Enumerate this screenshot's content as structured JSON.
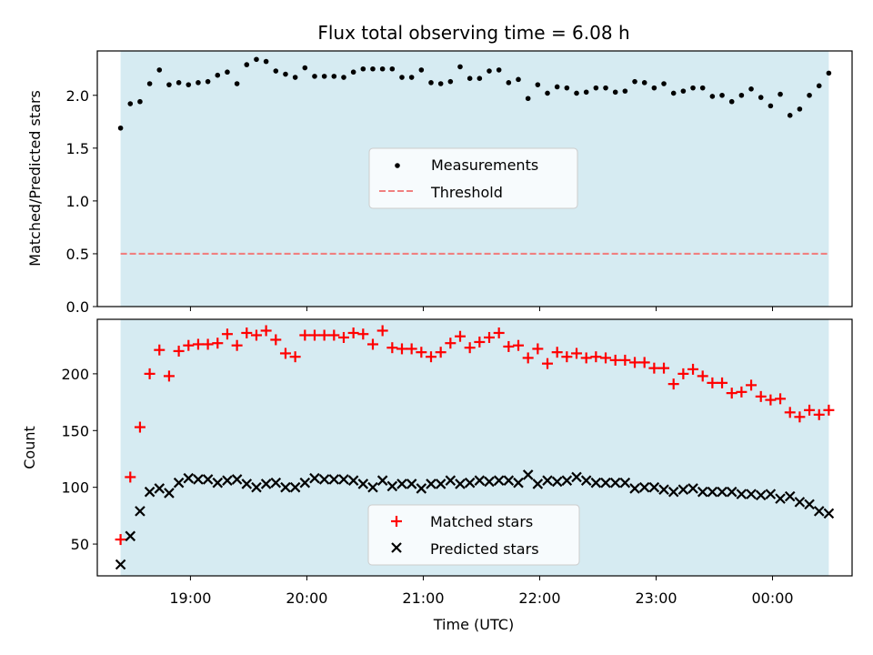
{
  "chart_data": [
    {
      "type": "scatter",
      "title": "Flux total observing time = 6.08 h",
      "xlabel": "",
      "ylabel": "Matched/Predicted stars",
      "ylim": [
        0.0,
        2.42
      ],
      "yticks": [
        "0.0",
        "0.5",
        "1.0",
        "1.5",
        "2.0"
      ],
      "shaded_span": {
        "x0": "18:24",
        "x1": "00:29",
        "color": "#add8e6"
      },
      "legend_location": "center",
      "series": [
        {
          "name": "Measurements",
          "marker": "dot",
          "color": "#000000",
          "points": [
            [
              "18:24",
              1.69
            ],
            [
              "18:29",
              1.92
            ],
            [
              "18:34",
              1.94
            ],
            [
              "18:39",
              2.11
            ],
            [
              "18:44",
              2.24
            ],
            [
              "18:49",
              2.1
            ],
            [
              "18:54",
              2.12
            ],
            [
              "18:59",
              2.1
            ],
            [
              "19:04",
              2.12
            ],
            [
              "19:09",
              2.13
            ],
            [
              "19:14",
              2.19
            ],
            [
              "19:19",
              2.22
            ],
            [
              "19:24",
              2.11
            ],
            [
              "19:29",
              2.29
            ],
            [
              "19:34",
              2.34
            ],
            [
              "19:39",
              2.32
            ],
            [
              "19:44",
              2.23
            ],
            [
              "19:49",
              2.2
            ],
            [
              "19:54",
              2.17
            ],
            [
              "19:59",
              2.26
            ],
            [
              "20:04",
              2.18
            ],
            [
              "20:09",
              2.18
            ],
            [
              "20:14",
              2.18
            ],
            [
              "20:19",
              2.17
            ],
            [
              "20:24",
              2.22
            ],
            [
              "20:29",
              2.25
            ],
            [
              "20:34",
              2.25
            ],
            [
              "20:39",
              2.25
            ],
            [
              "20:44",
              2.25
            ],
            [
              "20:49",
              2.17
            ],
            [
              "20:54",
              2.17
            ],
            [
              "20:59",
              2.24
            ],
            [
              "21:04",
              2.12
            ],
            [
              "21:09",
              2.11
            ],
            [
              "21:14",
              2.13
            ],
            [
              "21:19",
              2.27
            ],
            [
              "21:24",
              2.16
            ],
            [
              "21:29",
              2.16
            ],
            [
              "21:34",
              2.23
            ],
            [
              "21:39",
              2.24
            ],
            [
              "21:44",
              2.12
            ],
            [
              "21:49",
              2.15
            ],
            [
              "21:54",
              1.97
            ],
            [
              "21:59",
              2.1
            ],
            [
              "22:04",
              2.02
            ],
            [
              "22:09",
              2.08
            ],
            [
              "22:14",
              2.07
            ],
            [
              "22:19",
              2.02
            ],
            [
              "22:24",
              2.03
            ],
            [
              "22:29",
              2.07
            ],
            [
              "22:34",
              2.07
            ],
            [
              "22:39",
              2.03
            ],
            [
              "22:44",
              2.04
            ],
            [
              "22:49",
              2.13
            ],
            [
              "22:54",
              2.12
            ],
            [
              "22:59",
              2.07
            ],
            [
              "23:04",
              2.11
            ],
            [
              "23:09",
              2.02
            ],
            [
              "23:14",
              2.04
            ],
            [
              "23:19",
              2.07
            ],
            [
              "23:24",
              2.07
            ],
            [
              "23:29",
              1.99
            ],
            [
              "23:34",
              2.0
            ],
            [
              "23:39",
              1.94
            ],
            [
              "23:44",
              2.0
            ],
            [
              "23:49",
              2.06
            ],
            [
              "23:54",
              1.98
            ],
            [
              "23:59",
              1.9
            ],
            [
              "00:04",
              2.01
            ],
            [
              "00:09",
              1.81
            ],
            [
              "00:14",
              1.87
            ],
            [
              "00:19",
              2.0
            ],
            [
              "00:24",
              2.09
            ],
            [
              "00:29",
              2.21
            ]
          ]
        },
        {
          "name": "Threshold",
          "line": "dashed",
          "color": "#f08080",
          "points": [
            [
              "18:24",
              0.5
            ],
            [
              "00:29",
              0.5
            ]
          ]
        }
      ]
    },
    {
      "type": "scatter",
      "title": "",
      "xlabel": "Time (UTC)",
      "ylabel": "Count",
      "ylim": [
        22,
        248
      ],
      "yticks": [
        "50",
        "100",
        "150",
        "200"
      ],
      "xticks": [
        "19:00",
        "20:00",
        "21:00",
        "22:00",
        "23:00",
        "00:00"
      ],
      "shaded_span": {
        "x0": "18:24",
        "x1": "00:29",
        "color": "#add8e6"
      },
      "legend_location": "lower center",
      "series": [
        {
          "name": "Matched stars",
          "marker": "plus",
          "color": "#ff0000",
          "points": [
            [
              "18:24",
              54
            ],
            [
              "18:29",
              109
            ],
            [
              "18:34",
              153
            ],
            [
              "18:39",
              200
            ],
            [
              "18:44",
              221
            ],
            [
              "18:49",
              198
            ],
            [
              "18:54",
              220
            ],
            [
              "18:59",
              225
            ],
            [
              "19:04",
              226
            ],
            [
              "19:09",
              226
            ],
            [
              "19:14",
              227
            ],
            [
              "19:19",
              235
            ],
            [
              "19:24",
              225
            ],
            [
              "19:29",
              236
            ],
            [
              "19:34",
              234
            ],
            [
              "19:39",
              238
            ],
            [
              "19:44",
              230
            ],
            [
              "19:49",
              218
            ],
            [
              "19:54",
              215
            ],
            [
              "19:59",
              234
            ],
            [
              "20:04",
              234
            ],
            [
              "20:09",
              234
            ],
            [
              "20:14",
              234
            ],
            [
              "20:19",
              232
            ],
            [
              "20:24",
              236
            ],
            [
              "20:29",
              235
            ],
            [
              "20:34",
              226
            ],
            [
              "20:39",
              238
            ],
            [
              "20:44",
              223
            ],
            [
              "20:49",
              222
            ],
            [
              "20:54",
              222
            ],
            [
              "20:59",
              219
            ],
            [
              "21:04",
              215
            ],
            [
              "21:09",
              219
            ],
            [
              "21:14",
              227
            ],
            [
              "21:19",
              233
            ],
            [
              "21:24",
              223
            ],
            [
              "21:29",
              228
            ],
            [
              "21:34",
              232
            ],
            [
              "21:39",
              236
            ],
            [
              "21:44",
              224
            ],
            [
              "21:49",
              225
            ],
            [
              "21:54",
              214
            ],
            [
              "21:59",
              222
            ],
            [
              "22:04",
              209
            ],
            [
              "22:09",
              219
            ],
            [
              "22:14",
              215
            ],
            [
              "22:19",
              218
            ],
            [
              "22:24",
              214
            ],
            [
              "22:29",
              215
            ],
            [
              "22:34",
              214
            ],
            [
              "22:39",
              212
            ],
            [
              "22:44",
              212
            ],
            [
              "22:49",
              210
            ],
            [
              "22:54",
              210
            ],
            [
              "22:59",
              205
            ],
            [
              "23:04",
              205
            ],
            [
              "23:09",
              191
            ],
            [
              "23:14",
              200
            ],
            [
              "23:19",
              204
            ],
            [
              "23:24",
              198
            ],
            [
              "23:29",
              192
            ],
            [
              "23:34",
              192
            ],
            [
              "23:39",
              183
            ],
            [
              "23:44",
              184
            ],
            [
              "23:49",
              190
            ],
            [
              "23:54",
              180
            ],
            [
              "23:59",
              177
            ],
            [
              "00:04",
              178
            ],
            [
              "00:09",
              166
            ],
            [
              "00:14",
              162
            ],
            [
              "00:19",
              168
            ],
            [
              "00:24",
              164
            ],
            [
              "00:29",
              168
            ]
          ]
        },
        {
          "name": "Predicted stars",
          "marker": "x",
          "color": "#000000",
          "points": [
            [
              "18:24",
              32
            ],
            [
              "18:29",
              57
            ],
            [
              "18:34",
              79
            ],
            [
              "18:39",
              96
            ],
            [
              "18:44",
              99
            ],
            [
              "18:49",
              95
            ],
            [
              "18:54",
              104
            ],
            [
              "18:59",
              108
            ],
            [
              "19:04",
              107
            ],
            [
              "19:09",
              107
            ],
            [
              "19:14",
              104
            ],
            [
              "19:19",
              106
            ],
            [
              "19:24",
              107
            ],
            [
              "19:29",
              103
            ],
            [
              "19:34",
              100
            ],
            [
              "19:39",
              103
            ],
            [
              "19:44",
              104
            ],
            [
              "19:49",
              100
            ],
            [
              "19:54",
              100
            ],
            [
              "19:59",
              104
            ],
            [
              "20:04",
              108
            ],
            [
              "20:09",
              107
            ],
            [
              "20:14",
              107
            ],
            [
              "20:19",
              107
            ],
            [
              "20:24",
              106
            ],
            [
              "20:29",
              103
            ],
            [
              "20:34",
              100
            ],
            [
              "20:39",
              106
            ],
            [
              "20:44",
              101
            ],
            [
              "20:49",
              103
            ],
            [
              "20:54",
              103
            ],
            [
              "20:59",
              99
            ],
            [
              "21:04",
              103
            ],
            [
              "21:09",
              103
            ],
            [
              "21:14",
              106
            ],
            [
              "21:19",
              103
            ],
            [
              "21:24",
              104
            ],
            [
              "21:29",
              106
            ],
            [
              "21:34",
              105
            ],
            [
              "21:39",
              106
            ],
            [
              "21:44",
              106
            ],
            [
              "21:49",
              104
            ],
            [
              "21:54",
              111
            ],
            [
              "21:59",
              103
            ],
            [
              "22:04",
              106
            ],
            [
              "22:09",
              105
            ],
            [
              "22:14",
              106
            ],
            [
              "22:19",
              109
            ],
            [
              "22:24",
              106
            ],
            [
              "22:29",
              104
            ],
            [
              "22:34",
              104
            ],
            [
              "22:39",
              104
            ],
            [
              "22:44",
              104
            ],
            [
              "22:49",
              99
            ],
            [
              "22:54",
              100
            ],
            [
              "22:59",
              100
            ],
            [
              "23:04",
              98
            ],
            [
              "23:09",
              96
            ],
            [
              "23:14",
              98
            ],
            [
              "23:19",
              99
            ],
            [
              "23:24",
              96
            ],
            [
              "23:29",
              96
            ],
            [
              "23:34",
              96
            ],
            [
              "23:39",
              96
            ],
            [
              "23:44",
              94
            ],
            [
              "23:49",
              94
            ],
            [
              "23:54",
              93
            ],
            [
              "23:59",
              94
            ],
            [
              "00:04",
              90
            ],
            [
              "00:09",
              92
            ],
            [
              "00:14",
              87
            ],
            [
              "00:19",
              85
            ],
            [
              "00:24",
              79
            ],
            [
              "00:29",
              77
            ]
          ]
        }
      ]
    }
  ]
}
